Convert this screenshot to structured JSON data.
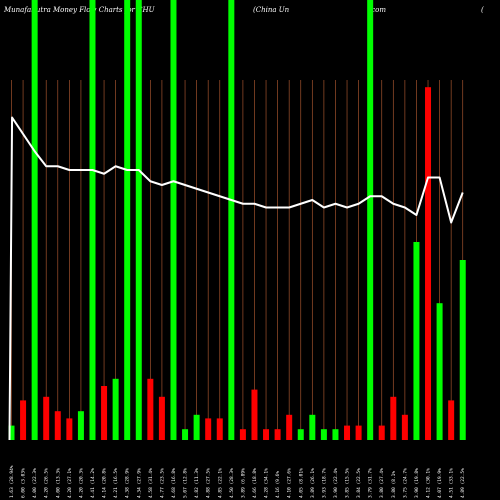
{
  "title_parts": [
    "MunafaSutra  Money  Flow  Charts for CHU",
    "(China  Un",
    "icom",
    "("
  ],
  "chart_data": {
    "type": "bar",
    "title": "MunafaSutra Money Flow Charts for CHU (China Unicom (",
    "colors": {
      "up": "#00ff00",
      "down": "#ff0000",
      "line": "#ffffff",
      "grid": "#a0522d",
      "background": "#000000"
    },
    "ylim": [
      0,
      100
    ],
    "categories": [
      "1.63 (28.94%",
      "6.00 (3.03%",
      "4.00 (22.3%",
      "4.20 (26.5%",
      "4.00 (13.3%",
      "4.20 (27.1%",
      "4.20 (20.3%",
      "4.41 (14.2%",
      "4.14 (20.8%",
      "4.21 (16.5%",
      "4.38 (28.9%",
      "4.34 (27.9%",
      "4.58 (31.4%",
      "4.77 (23.5%",
      "4.68 (16.8%",
      "5.07 (12.8%",
      "4.82 (11.3%",
      "4.88 (27.5%",
      "4.85 (22.1%",
      "4.50 (28.3%",
      "3.89 (6.89%",
      "4.66 (18.8%",
      "4.28 (34.1%",
      "4.16 (9.6%",
      "4.10 (27.6%",
      "4.05 (8.01%",
      "3.89 (26.1%",
      "3.93 (18.7%",
      "3.90 (22.4%",
      "3.85 (15.5%",
      "3.84 (22.5%",
      "3.79 (31.7%",
      "3.80 (27.4%",
      "3.80 (8.1%",
      "3.75 (24.7%",
      "3.90 (19.8%",
      "4.12 (30.1%",
      "4.07 (19.9%",
      "4.51 (33.1%",
      "4.89 (22.5%"
    ],
    "bar_values": [
      4,
      11,
      96,
      12,
      8,
      6,
      8,
      96,
      15,
      17,
      96,
      96,
      17,
      12,
      96,
      3,
      7,
      6,
      6,
      96,
      3,
      14,
      3,
      3,
      7,
      3,
      7,
      3,
      3,
      4,
      4,
      96,
      4,
      12,
      7,
      55,
      98,
      38,
      11,
      50
    ],
    "bar_colors": [
      "g",
      "r",
      "g",
      "r",
      "r",
      "r",
      "g",
      "g",
      "r",
      "g",
      "g",
      "g",
      "r",
      "r",
      "g",
      "g",
      "g",
      "r",
      "r",
      "g",
      "r",
      "r",
      "r",
      "r",
      "r",
      "g",
      "g",
      "g",
      "g",
      "r",
      "r",
      "g",
      "r",
      "r",
      "r",
      "g",
      "r",
      "g",
      "r",
      "g"
    ],
    "full_height": [
      false,
      false,
      true,
      false,
      false,
      false,
      false,
      true,
      false,
      false,
      true,
      true,
      false,
      false,
      true,
      false,
      false,
      false,
      false,
      true,
      false,
      false,
      false,
      false,
      false,
      false,
      false,
      false,
      false,
      false,
      false,
      true,
      false,
      false,
      false,
      false,
      false,
      false,
      false,
      false
    ],
    "line_values": [
      0,
      86,
      77,
      73,
      73,
      72,
      72,
      72,
      71,
      73,
      72,
      72,
      69,
      68,
      69,
      68,
      67,
      66,
      65,
      64,
      63,
      63,
      62,
      62,
      62,
      63,
      64,
      62,
      63,
      62,
      63,
      65,
      65,
      63,
      62,
      60,
      70,
      70,
      58,
      66
    ]
  }
}
